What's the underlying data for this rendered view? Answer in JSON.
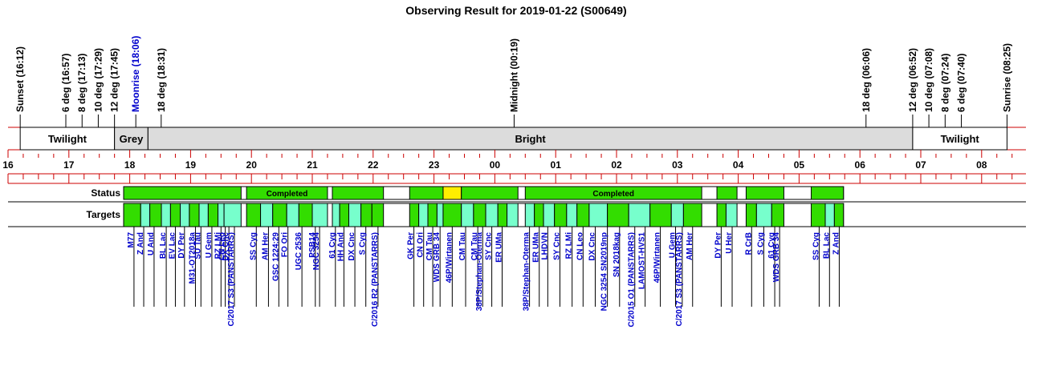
{
  "title": "Observing Result for 2019-01-22 (S00649)",
  "colors": {
    "twilight": "#ffffff",
    "grey": "#dcdcdc",
    "bright": "#dcdcdc",
    "axis": "#cc0000",
    "completed": "#33dd00",
    "target_alt": "#77ffcc",
    "pending": "#ffee00",
    "target_text": "#0000cc"
  },
  "chart_data": {
    "type": "timeline",
    "x_range_hours": [
      15.95,
      32.6
    ],
    "events": [
      {
        "label": "Sunset (16:12)",
        "t": 16.2,
        "blue": false
      },
      {
        "label": "6 deg (16:57)",
        "t": 16.95,
        "blue": false
      },
      {
        "label": "8 deg (17:13)",
        "t": 17.217,
        "blue": false
      },
      {
        "label": "10 deg (17:29)",
        "t": 17.483,
        "blue": false
      },
      {
        "label": "12 deg (17:45)",
        "t": 17.75,
        "blue": false
      },
      {
        "label": "Moonrise (18:06)",
        "t": 18.1,
        "blue": true
      },
      {
        "label": "18 deg (18:31)",
        "t": 18.517,
        "blue": false
      },
      {
        "label": "Midnight (00:19)",
        "t": 24.317,
        "blue": false
      },
      {
        "label": "18 deg (06:06)",
        "t": 30.1,
        "blue": false
      },
      {
        "label": "12 deg (06:52)",
        "t": 30.867,
        "blue": false
      },
      {
        "label": "10 deg (07:08)",
        "t": 31.133,
        "blue": false
      },
      {
        "label": "8 deg (07:24)",
        "t": 31.4,
        "blue": false
      },
      {
        "label": "6 deg (07:40)",
        "t": 31.667,
        "blue": false
      },
      {
        "label": "Sunrise (08:25)",
        "t": 32.417,
        "blue": false
      }
    ],
    "bands": [
      {
        "label": "Twilight",
        "start": 16.2,
        "end": 17.75,
        "kind": "twilight"
      },
      {
        "label": "Grey",
        "start": 17.75,
        "end": 18.3,
        "kind": "grey"
      },
      {
        "label": "Bright",
        "start": 18.3,
        "end": 30.867,
        "kind": "bright"
      },
      {
        "label": "Twilight",
        "start": 30.867,
        "end": 32.417,
        "kind": "twilight"
      }
    ],
    "hour_ticks": [
      {
        "label": "16",
        "t": 16
      },
      {
        "label": "17",
        "t": 17
      },
      {
        "label": "18",
        "t": 18
      },
      {
        "label": "19",
        "t": 19
      },
      {
        "label": "20",
        "t": 20
      },
      {
        "label": "21",
        "t": 21
      },
      {
        "label": "22",
        "t": 22
      },
      {
        "label": "23",
        "t": 23
      },
      {
        "label": "00",
        "t": 24
      },
      {
        "label": "01",
        "t": 25
      },
      {
        "label": "02",
        "t": 26
      },
      {
        "label": "03",
        "t": 27
      },
      {
        "label": "04",
        "t": 28
      },
      {
        "label": "05",
        "t": 29
      },
      {
        "label": "06",
        "t": 30
      },
      {
        "label": "07",
        "t": 31
      },
      {
        "label": "08",
        "t": 32
      }
    ],
    "row_labels": {
      "status": "Status",
      "targets": "Targets"
    },
    "status_blocks": [
      {
        "start": 17.9,
        "end": 19.83,
        "state": "completed",
        "label": ""
      },
      {
        "start": 19.92,
        "end": 21.25,
        "state": "completed",
        "label": "Completed"
      },
      {
        "start": 21.33,
        "end": 22.17,
        "state": "completed",
        "label": ""
      },
      {
        "start": 22.6,
        "end": 23.15,
        "state": "completed",
        "label": ""
      },
      {
        "start": 23.15,
        "end": 23.45,
        "state": "pending",
        "label": ""
      },
      {
        "start": 23.45,
        "end": 24.38,
        "state": "completed",
        "label": ""
      },
      {
        "start": 24.5,
        "end": 27.4,
        "state": "completed",
        "label": "Completed"
      },
      {
        "start": 27.65,
        "end": 27.98,
        "state": "completed",
        "label": ""
      },
      {
        "start": 28.13,
        "end": 28.75,
        "state": "completed",
        "label": ""
      },
      {
        "start": 29.2,
        "end": 29.73,
        "state": "completed",
        "label": ""
      }
    ],
    "target_blocks": [
      {
        "start": 17.9,
        "end": 18.18,
        "c": 0
      },
      {
        "start": 18.18,
        "end": 18.33,
        "c": 1
      },
      {
        "start": 18.33,
        "end": 18.52,
        "c": 0
      },
      {
        "start": 18.52,
        "end": 18.67,
        "c": 1
      },
      {
        "start": 18.67,
        "end": 18.83,
        "c": 0
      },
      {
        "start": 18.83,
        "end": 18.98,
        "c": 1
      },
      {
        "start": 18.98,
        "end": 19.14,
        "c": 0
      },
      {
        "start": 19.14,
        "end": 19.29,
        "c": 1
      },
      {
        "start": 19.29,
        "end": 19.45,
        "c": 0
      },
      {
        "start": 19.45,
        "end": 19.55,
        "c": 1
      },
      {
        "start": 19.55,
        "end": 19.83,
        "c": 1
      },
      {
        "start": 19.92,
        "end": 20.15,
        "c": 0
      },
      {
        "start": 20.15,
        "end": 20.35,
        "c": 1
      },
      {
        "start": 20.35,
        "end": 20.58,
        "c": 0
      },
      {
        "start": 20.58,
        "end": 20.78,
        "c": 1
      },
      {
        "start": 20.78,
        "end": 21.0,
        "c": 0
      },
      {
        "start": 21.0,
        "end": 21.25,
        "c": 1
      },
      {
        "start": 21.33,
        "end": 21.45,
        "c": 1
      },
      {
        "start": 21.45,
        "end": 21.6,
        "c": 0
      },
      {
        "start": 21.6,
        "end": 21.8,
        "c": 1
      },
      {
        "start": 21.8,
        "end": 21.98,
        "c": 0
      },
      {
        "start": 21.98,
        "end": 22.17,
        "c": 0
      },
      {
        "start": 22.6,
        "end": 22.75,
        "c": 0
      },
      {
        "start": 22.75,
        "end": 22.9,
        "c": 1
      },
      {
        "start": 22.9,
        "end": 23.05,
        "c": 0
      },
      {
        "start": 23.05,
        "end": 23.15,
        "c": 1
      },
      {
        "start": 23.15,
        "end": 23.45,
        "c": 0
      },
      {
        "start": 23.45,
        "end": 23.65,
        "c": 1
      },
      {
        "start": 23.65,
        "end": 23.85,
        "c": 0
      },
      {
        "start": 23.85,
        "end": 24.05,
        "c": 1
      },
      {
        "start": 24.05,
        "end": 24.2,
        "c": 0
      },
      {
        "start": 24.2,
        "end": 24.38,
        "c": 1
      },
      {
        "start": 24.5,
        "end": 24.65,
        "c": 1
      },
      {
        "start": 24.65,
        "end": 24.8,
        "c": 0
      },
      {
        "start": 24.8,
        "end": 24.98,
        "c": 1
      },
      {
        "start": 24.98,
        "end": 25.18,
        "c": 0
      },
      {
        "start": 25.18,
        "end": 25.35,
        "c": 1
      },
      {
        "start": 25.35,
        "end": 25.55,
        "c": 0
      },
      {
        "start": 25.55,
        "end": 25.85,
        "c": 1
      },
      {
        "start": 25.85,
        "end": 26.2,
        "c": 0
      },
      {
        "start": 26.2,
        "end": 26.55,
        "c": 1
      },
      {
        "start": 26.55,
        "end": 26.9,
        "c": 0
      },
      {
        "start": 26.9,
        "end": 27.1,
        "c": 1
      },
      {
        "start": 27.1,
        "end": 27.4,
        "c": 0
      },
      {
        "start": 27.65,
        "end": 27.8,
        "c": 0
      },
      {
        "start": 27.8,
        "end": 27.98,
        "c": 1
      },
      {
        "start": 28.13,
        "end": 28.3,
        "c": 0
      },
      {
        "start": 28.3,
        "end": 28.55,
        "c": 1
      },
      {
        "start": 28.55,
        "end": 28.75,
        "c": 0
      },
      {
        "start": 29.2,
        "end": 29.43,
        "c": 0
      },
      {
        "start": 29.43,
        "end": 29.58,
        "c": 1
      },
      {
        "start": 29.58,
        "end": 29.73,
        "c": 0
      }
    ],
    "targets": [
      {
        "label": "M77",
        "t": 18.07,
        "line": 100
      },
      {
        "label": "Z And",
        "t": 18.23,
        "line": 100
      },
      {
        "label": "U And",
        "t": 18.4,
        "line": 100
      },
      {
        "label": "BL Lac",
        "t": 18.6,
        "line": 100
      },
      {
        "label": "EV Lac",
        "t": 18.75,
        "line": 100
      },
      {
        "label": "DY Per",
        "t": 18.9,
        "line": 100
      },
      {
        "label": "M31-OT2018a",
        "t": 19.08,
        "line": 100
      },
      {
        "label": "SU Tau",
        "t": 19.17,
        "line": 100
      },
      {
        "label": "U Gem",
        "t": 19.35,
        "line": 100
      },
      {
        "label": "RZ LMi",
        "t": 19.5,
        "line": 100
      },
      {
        "label": "CN Leo",
        "t": 19.57,
        "line": 100
      },
      {
        "label": "DX Cnc",
        "t": 19.63,
        "line": 100
      },
      {
        "label": "C/2017 S3 (PANSTARRS)",
        "t": 19.72,
        "line": 100
      },
      {
        "label": "SS Cyg",
        "t": 20.08,
        "line": 100
      },
      {
        "label": "AM Her",
        "t": 20.28,
        "line": 100
      },
      {
        "label": "GSC 1224:29",
        "t": 20.45,
        "line": 100
      },
      {
        "label": "FO Ori",
        "t": 20.6,
        "line": 100
      },
      {
        "label": "UGC 2536",
        "t": 20.83,
        "line": 100
      },
      {
        "label": "PSB14",
        "t": 21.05,
        "line": 100
      },
      {
        "label": "NGC 3254",
        "t": 21.12,
        "line": 100
      },
      {
        "label": "61 Cyg",
        "t": 21.38,
        "line": 100
      },
      {
        "label": "HH And",
        "t": 21.52,
        "line": 100
      },
      {
        "label": "DX Cnc",
        "t": 21.7,
        "line": 100
      },
      {
        "label": "S Cyg",
        "t": 21.88,
        "line": 100
      },
      {
        "label": "C/2016 R2 (PANSTARRS)",
        "t": 22.08,
        "line": 100
      },
      {
        "label": "GK Per",
        "t": 22.67,
        "line": 100
      },
      {
        "label": "CN Ori",
        "t": 22.83,
        "line": 100
      },
      {
        "label": "CM Tau",
        "t": 22.98,
        "line": 100
      },
      {
        "label": "WDS GRB 34",
        "t": 23.1,
        "line": 100
      },
      {
        "label": "46P/Wirtanen",
        "t": 23.3,
        "line": 100
      },
      {
        "label": "CM Tau",
        "t": 23.52,
        "line": 100
      },
      {
        "label": "CM Tau",
        "t": 23.72,
        "line": 100
      },
      {
        "label": "38P/Stephan-Oterma",
        "t": 23.8,
        "line": 100
      },
      {
        "label": "SY Cnc",
        "t": 23.95,
        "line": 100
      },
      {
        "label": "ER UMa",
        "t": 24.12,
        "line": 100
      },
      {
        "label": "38P/Stephan-Oterma",
        "t": 24.57,
        "line": 100
      },
      {
        "label": "ER UMa",
        "t": 24.73,
        "line": 100
      },
      {
        "label": "LHDVN",
        "t": 24.87,
        "line": 100
      },
      {
        "label": "SY Cnc",
        "t": 25.07,
        "line": 100
      },
      {
        "label": "RZ LMi",
        "t": 25.27,
        "line": 100
      },
      {
        "label": "CN Leo",
        "t": 25.45,
        "line": 100
      },
      {
        "label": "DX Cnc",
        "t": 25.65,
        "line": 100
      },
      {
        "label": "NGC 3254 SN2019np",
        "t": 25.85,
        "line": 100
      },
      {
        "label": "SN 2018kag",
        "t": 26.05,
        "line": 100
      },
      {
        "label": "C/2015 O1 (PANSTARRS)",
        "t": 26.3,
        "line": 100
      },
      {
        "label": "LAMOST-HVS1",
        "t": 26.47,
        "line": 100
      },
      {
        "label": "46P/Wirtanen",
        "t": 26.72,
        "line": 100
      },
      {
        "label": "U Gem",
        "t": 26.97,
        "line": 100
      },
      {
        "label": "C/2017 S3 (PANSTARRS)",
        "t": 27.08,
        "line": 100
      },
      {
        "label": "AM Her",
        "t": 27.25,
        "line": 100
      },
      {
        "label": "DY Per",
        "t": 27.72,
        "line": 100
      },
      {
        "label": "U Her",
        "t": 27.9,
        "line": 100
      },
      {
        "label": "R CrB",
        "t": 28.22,
        "line": 100
      },
      {
        "label": "S Cyg",
        "t": 28.42,
        "line": 100
      },
      {
        "label": "61 Cyg",
        "t": 28.6,
        "line": 100
      },
      {
        "label": "WDS GRB 34",
        "t": 28.68,
        "line": 100
      },
      {
        "label": "SS Cyg",
        "t": 29.33,
        "line": 100
      },
      {
        "label": "BL Lac",
        "t": 29.5,
        "line": 100
      },
      {
        "label": "Z And",
        "t": 29.66,
        "line": 100
      }
    ]
  }
}
